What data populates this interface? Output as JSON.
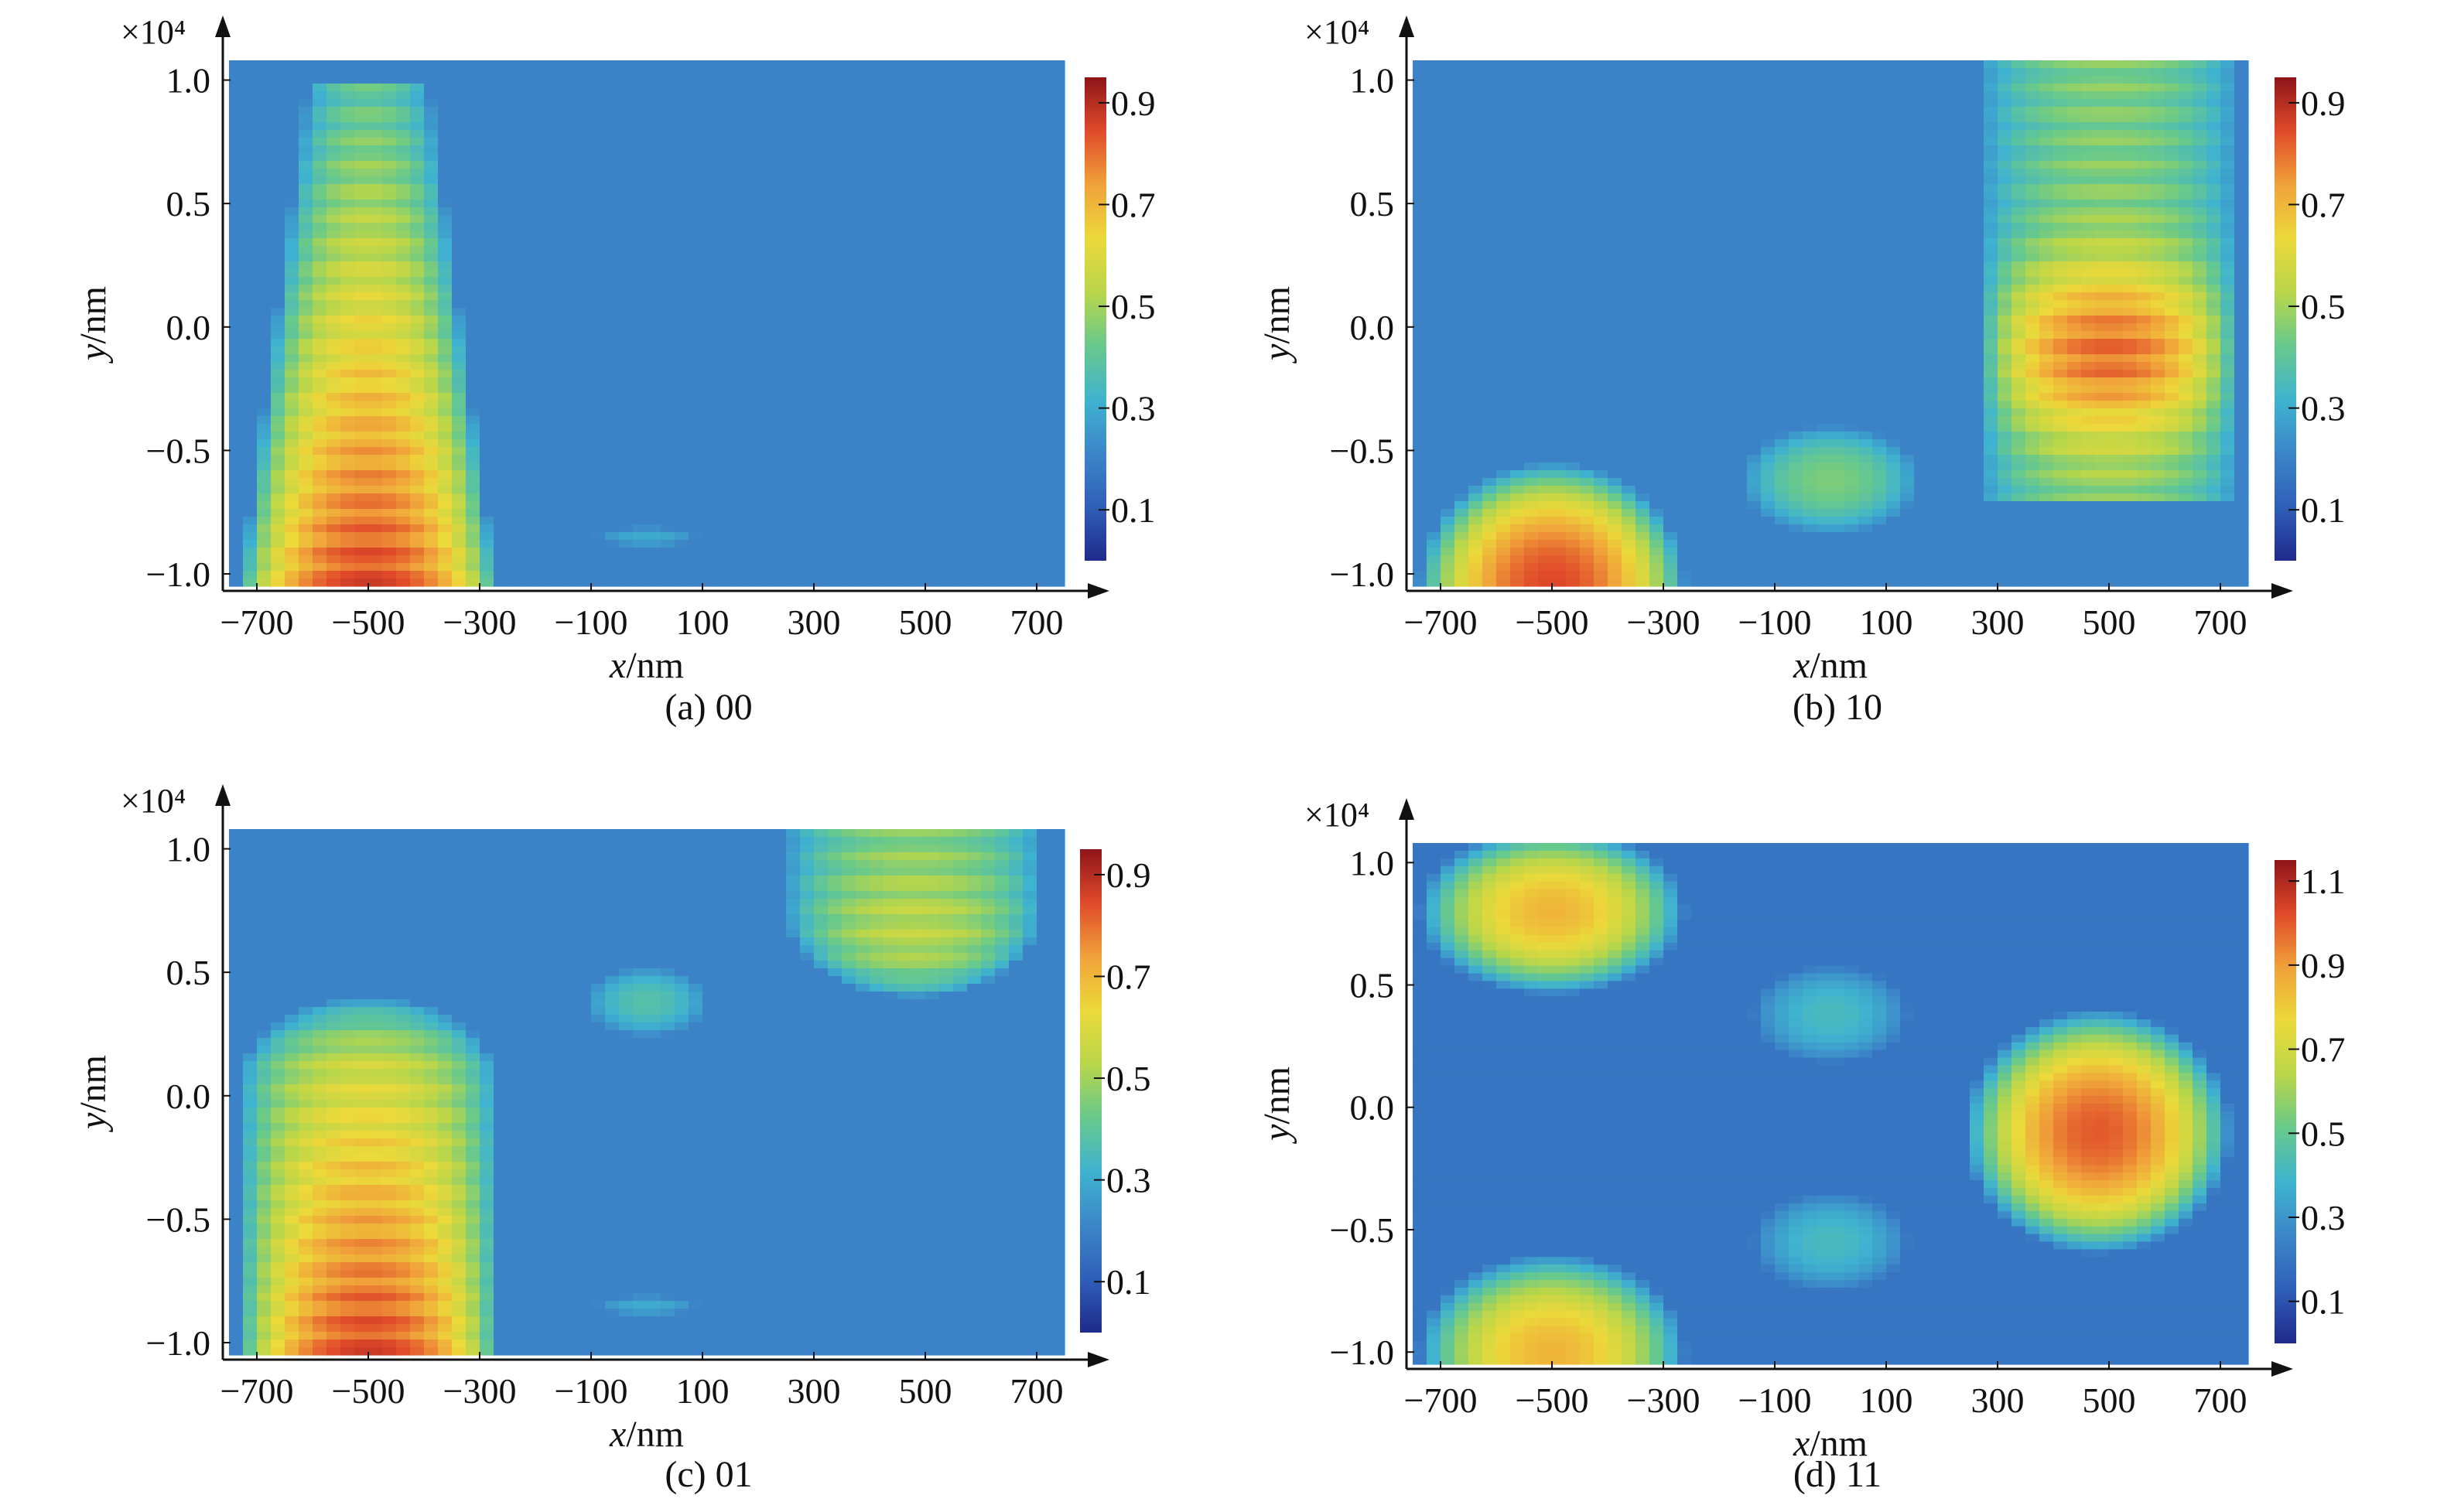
{
  "figure": {
    "colormap_stops": [
      "#1f2a8a",
      "#2f5fb8",
      "#3c86c8",
      "#3fb3cf",
      "#68c98c",
      "#b9d64a",
      "#ecd93a",
      "#f0a23a",
      "#e04a2a",
      "#8e1419"
    ]
  },
  "chart_data": [
    {
      "type": "heatmap",
      "caption": "(a) 00",
      "xlabel_var": "x",
      "xlabel_unit": "/nm",
      "ylabel_var": "y",
      "ylabel_unit": "/nm",
      "y_multiplier": "×10⁴",
      "xlim": [
        -750,
        750
      ],
      "ylim": [
        -1.05,
        1.08
      ],
      "x_ticks": [
        -700,
        -500,
        -300,
        -100,
        100,
        300,
        500,
        700
      ],
      "x_tick_labels": [
        "−700",
        "−500",
        "−300",
        "−100",
        "100",
        "300",
        "500",
        "700"
      ],
      "y_ticks": [
        -1.0,
        -0.5,
        0.0,
        0.5,
        1.0
      ],
      "y_tick_labels": [
        "−1.0",
        "−0.5",
        "0.0",
        "0.5",
        "1.0"
      ],
      "colorbar": {
        "ticks": [
          0.1,
          0.3,
          0.5,
          0.7,
          0.9
        ],
        "labels": [
          "0.1",
          "0.3",
          "0.5",
          "0.7",
          "0.9"
        ],
        "range": [
          0.0,
          0.95
        ]
      },
      "background": 0.2,
      "regions": [
        {
          "kind": "column",
          "x_center": -500,
          "x_half_top": 110,
          "x_half_bottom": 230,
          "y_bottom": -1.05,
          "y_top": 0.97,
          "peak": 0.85,
          "base": 0.4
        },
        {
          "kind": "blob",
          "x": 0,
          "y": -0.85,
          "rx": 90,
          "ry": 0.04,
          "peak": 0.3
        }
      ]
    },
    {
      "type": "heatmap",
      "caption": "(b) 10",
      "xlabel_var": "x",
      "xlabel_unit": "/nm",
      "ylabel_var": "y",
      "ylabel_unit": "/nm",
      "y_multiplier": "×10⁴",
      "xlim": [
        -750,
        750
      ],
      "ylim": [
        -1.05,
        1.08
      ],
      "x_ticks": [
        -700,
        -500,
        -300,
        -100,
        100,
        300,
        500,
        700
      ],
      "x_tick_labels": [
        "−700",
        "−500",
        "−300",
        "−100",
        "100",
        "300",
        "500",
        "700"
      ],
      "y_ticks": [
        -1.0,
        -0.5,
        0.0,
        0.5,
        1.0
      ],
      "y_tick_labels": [
        "−1.0",
        "−0.5",
        "0.0",
        "0.5",
        "1.0"
      ],
      "colorbar": {
        "ticks": [
          0.1,
          0.3,
          0.5,
          0.7,
          0.9
        ],
        "labels": [
          "0.1",
          "0.3",
          "0.5",
          "0.7",
          "0.9"
        ],
        "range": [
          0.0,
          0.95
        ]
      },
      "background": 0.2,
      "regions": [
        {
          "kind": "blob",
          "x": -500,
          "y": -1.05,
          "rx": 240,
          "ry": 0.5,
          "peak": 0.85
        },
        {
          "kind": "blob",
          "x": 0,
          "y": -0.62,
          "rx": 160,
          "ry": 0.22,
          "peak": 0.45
        },
        {
          "kind": "column",
          "x_center": 500,
          "x_half_top": 230,
          "x_half_bottom": 230,
          "y_bottom": -0.7,
          "y_top": 1.08,
          "peak": 0.8,
          "peak_y": -0.1,
          "base": 0.45
        }
      ]
    },
    {
      "type": "heatmap",
      "caption": "(c) 01",
      "xlabel_var": "x",
      "xlabel_unit": "/nm",
      "ylabel_var": "y",
      "ylabel_unit": "/nm",
      "y_multiplier": "×10⁴",
      "xlim": [
        -750,
        750
      ],
      "ylim": [
        -1.05,
        1.08
      ],
      "x_ticks": [
        -700,
        -500,
        -300,
        -100,
        100,
        300,
        500,
        700
      ],
      "x_tick_labels": [
        "−700",
        "−500",
        "−300",
        "−100",
        "100",
        "300",
        "500",
        "700"
      ],
      "y_ticks": [
        -1.0,
        -0.5,
        0.0,
        0.5,
        1.0
      ],
      "y_tick_labels": [
        "−1.0",
        "−0.5",
        "0.0",
        "0.5",
        "1.0"
      ],
      "colorbar": {
        "ticks": [
          0.1,
          0.3,
          0.5,
          0.7,
          0.9
        ],
        "labels": [
          "0.1",
          "0.3",
          "0.5",
          "0.7",
          "0.9"
        ],
        "range": [
          0.0,
          0.95
        ]
      },
      "background": 0.2,
      "regions": [
        {
          "kind": "column",
          "x_center": -500,
          "x_half_top": 230,
          "x_half_bottom": 230,
          "y_bottom": -1.05,
          "y_top": 0.4,
          "peak": 0.85,
          "base": 0.5,
          "round_top": true
        },
        {
          "kind": "blob",
          "x": 0,
          "y": 0.38,
          "rx": 110,
          "ry": 0.14,
          "peak": 0.38
        },
        {
          "kind": "column",
          "x_center": 480,
          "x_half_top": 230,
          "x_half_bottom": 230,
          "y_bottom": 0.4,
          "y_top": 1.08,
          "peak": 0.6,
          "base": 0.45,
          "round_bottom": true
        },
        {
          "kind": "blob",
          "x": 0,
          "y": -0.85,
          "rx": 90,
          "ry": 0.04,
          "peak": 0.3
        }
      ]
    },
    {
      "type": "heatmap",
      "caption": "(d) 11",
      "xlabel_var": "x",
      "xlabel_unit": "/nm",
      "ylabel_var": "y",
      "ylabel_unit": "/nm",
      "y_multiplier": "×10⁴",
      "xlim": [
        -750,
        750
      ],
      "ylim": [
        -1.05,
        1.08
      ],
      "x_ticks": [
        -700,
        -500,
        -300,
        -100,
        100,
        300,
        500,
        700
      ],
      "x_tick_labels": [
        "−700",
        "−500",
        "−300",
        "−100",
        "100",
        "300",
        "500",
        "700"
      ],
      "y_ticks": [
        -1.0,
        -0.5,
        0.0,
        0.5,
        1.0
      ],
      "y_tick_labels": [
        "−1.0",
        "−0.5",
        "0.0",
        "0.5",
        "1.0"
      ],
      "colorbar": {
        "ticks": [
          0.1,
          0.3,
          0.5,
          0.7,
          0.9,
          1.1
        ],
        "labels": [
          "0.1",
          "0.3",
          "0.5",
          "0.7",
          "0.9",
          "1.1"
        ],
        "range": [
          0.0,
          1.15
        ]
      },
      "background": 0.2,
      "regions": [
        {
          "kind": "blob",
          "x": -500,
          "y": 0.8,
          "rx": 240,
          "ry": 0.34,
          "peak": 0.85
        },
        {
          "kind": "blob",
          "x": -500,
          "y": -1.0,
          "rx": 240,
          "ry": 0.4,
          "peak": 0.85
        },
        {
          "kind": "blob",
          "x": 0,
          "y": 0.38,
          "rx": 140,
          "ry": 0.2,
          "peak": 0.42
        },
        {
          "kind": "blob",
          "x": 0,
          "y": -0.55,
          "rx": 140,
          "ry": 0.2,
          "peak": 0.42
        },
        {
          "kind": "blob",
          "x": 480,
          "y": -0.1,
          "rx": 240,
          "ry": 0.5,
          "peak": 1.0
        }
      ]
    }
  ]
}
